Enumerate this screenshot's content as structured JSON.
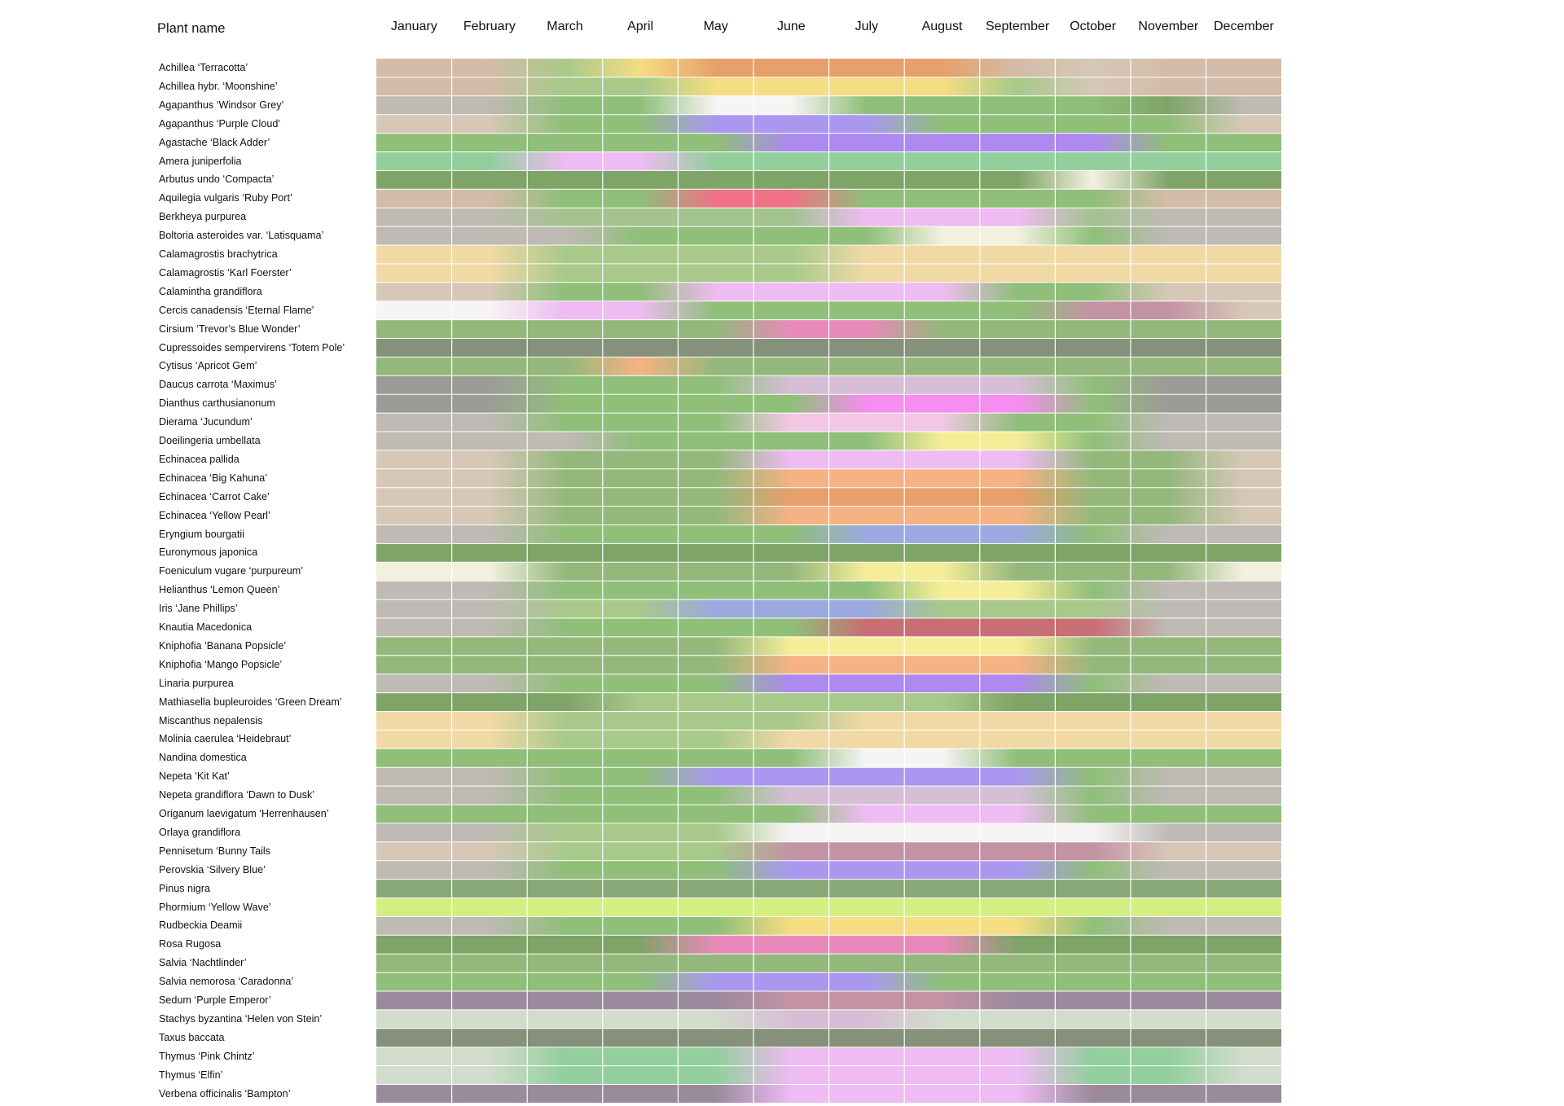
{
  "header": {
    "plant_name_label": "Plant name"
  },
  "chart_data": {
    "type": "heatmap",
    "months": [
      "January",
      "February",
      "March",
      "April",
      "May",
      "June",
      "July",
      "August",
      "September",
      "October",
      "November",
      "December"
    ],
    "palette": {
      "ochre": "#d3bca9",
      "beige": "#d6c7b7",
      "grey": "#bfbab4",
      "darkgrey": "#9d9b97",
      "green": "#8fbf79",
      "lightgreen": "#a8c98a",
      "midgreen": "#94b87c",
      "darkgreen": "#7fa468",
      "teal": "#92cf9c",
      "olive": "#88a878",
      "greygreen": "#85917a",
      "sage": "#a3c38f",
      "straw": "#f1d9a6",
      "orange": "#e7a06b",
      "apricot": "#f5b283",
      "yellow": "#f4dd82",
      "lemon": "#f6ed98",
      "cream": "#f3f0df",
      "white": "#f7f4f4",
      "lavender": "#aa98f0",
      "violet": "#ad89f0",
      "blue": "#9aa9df",
      "pink": "#eebbf2",
      "rose": "#e88ab9",
      "magenta": "#f68df0",
      "red": "#ef7286",
      "wine": "#c86e75",
      "mauve": "#c393a4",
      "lilac": "#d6bfd6",
      "purplegrey": "#9b8a9d",
      "lime": "#d5ee82",
      "silver": "#d2dccd",
      "pinkwhite": "#f2c6e4"
    },
    "plants": [
      {
        "name": "Achillea ‘Terracotta’",
        "colors": [
          "ochre",
          "ochre",
          "lightgreen",
          "yellow",
          "orange",
          "orange",
          "orange",
          "orange",
          "ochre",
          "beige",
          "ochre",
          "ochre"
        ]
      },
      {
        "name": "Achillea hybr. ‘Moonshine’",
        "colors": [
          "ochre",
          "ochre",
          "lightgreen",
          "lightgreen",
          "yellow",
          "yellow",
          "yellow",
          "yellow",
          "lightgreen",
          "beige",
          "ochre",
          "ochre"
        ]
      },
      {
        "name": "Agapanthus ‘Windsor Grey’",
        "colors": [
          "grey",
          "grey",
          "green",
          "green",
          "white",
          "white",
          "green",
          "green",
          "green",
          "green",
          "darkgreen",
          "grey"
        ]
      },
      {
        "name": "Agapanthus ‘Purple Cloud’",
        "colors": [
          "beige",
          "beige",
          "green",
          "green",
          "lavender",
          "lavender",
          "lavender",
          "green",
          "green",
          "green",
          "green",
          "beige"
        ]
      },
      {
        "name": "Agastache ‘Black Adder’",
        "colors": [
          "green",
          "green",
          "green",
          "green",
          "green",
          "violet",
          "violet",
          "violet",
          "violet",
          "violet",
          "green",
          "green"
        ]
      },
      {
        "name": "Amera juniperfolia",
        "colors": [
          "teal",
          "teal",
          "pink",
          "pink",
          "teal",
          "teal",
          "teal",
          "teal",
          "teal",
          "teal",
          "teal",
          "teal"
        ]
      },
      {
        "name": "Arbutus undo ‘Compacta’",
        "colors": [
          "darkgreen",
          "darkgreen",
          "darkgreen",
          "darkgreen",
          "darkgreen",
          "darkgreen",
          "darkgreen",
          "darkgreen",
          "darkgreen",
          "cream",
          "darkgreen",
          "darkgreen"
        ]
      },
      {
        "name": "Aquilegia vulgaris ‘Ruby Port’",
        "colors": [
          "ochre",
          "ochre",
          "green",
          "green",
          "red",
          "red",
          "green",
          "green",
          "green",
          "green",
          "ochre",
          "ochre"
        ]
      },
      {
        "name": "Berkheya purpurea",
        "colors": [
          "grey",
          "grey",
          "sage",
          "sage",
          "sage",
          "sage",
          "pink",
          "pink",
          "pink",
          "sage",
          "grey",
          "grey"
        ]
      },
      {
        "name": "Boltoria asteroides var. ‘Latisquama’",
        "colors": [
          "grey",
          "grey",
          "grey",
          "green",
          "green",
          "green",
          "green",
          "cream",
          "cream",
          "green",
          "grey",
          "grey"
        ]
      },
      {
        "name": "Calamagrostis brachytrica",
        "colors": [
          "straw",
          "straw",
          "lightgreen",
          "lightgreen",
          "lightgreen",
          "lightgreen",
          "straw",
          "straw",
          "straw",
          "straw",
          "straw",
          "straw"
        ]
      },
      {
        "name": "Calamagrostis ‘Karl Foerster’",
        "colors": [
          "straw",
          "straw",
          "lightgreen",
          "lightgreen",
          "lightgreen",
          "lightgreen",
          "straw",
          "straw",
          "straw",
          "straw",
          "straw",
          "straw"
        ]
      },
      {
        "name": "Calamintha grandiflora",
        "colors": [
          "beige",
          "beige",
          "green",
          "green",
          "pink",
          "pink",
          "pink",
          "pink",
          "green",
          "green",
          "beige",
          "beige"
        ]
      },
      {
        "name": "Cercis canadensis ‘Eternal Flame’",
        "colors": [
          "white",
          "white",
          "pink",
          "pink",
          "green",
          "green",
          "green",
          "green",
          "green",
          "mauve",
          "mauve",
          "beige"
        ]
      },
      {
        "name": "Cirsium ‘Trevor’s Blue Wonder’",
        "colors": [
          "midgreen",
          "midgreen",
          "midgreen",
          "midgreen",
          "midgreen",
          "rose",
          "rose",
          "midgreen",
          "midgreen",
          "midgreen",
          "midgreen",
          "midgreen"
        ]
      },
      {
        "name": "Cupressoides sempervirens ‘Totem Pole’",
        "colors": [
          "greygreen",
          "greygreen",
          "greygreen",
          "greygreen",
          "greygreen",
          "greygreen",
          "greygreen",
          "greygreen",
          "greygreen",
          "greygreen",
          "greygreen",
          "greygreen"
        ]
      },
      {
        "name": "Cytisus ‘Apricot Gem’",
        "colors": [
          "midgreen",
          "midgreen",
          "midgreen",
          "apricot",
          "midgreen",
          "midgreen",
          "midgreen",
          "midgreen",
          "midgreen",
          "midgreen",
          "midgreen",
          "midgreen"
        ]
      },
      {
        "name": "Daucus carrota ‘Maximus’",
        "colors": [
          "darkgrey",
          "darkgrey",
          "green",
          "green",
          "green",
          "lilac",
          "lilac",
          "lilac",
          "lilac",
          "green",
          "darkgrey",
          "darkgrey"
        ]
      },
      {
        "name": "Dianthus carthusianonum",
        "colors": [
          "darkgrey",
          "darkgrey",
          "green",
          "green",
          "green",
          "green",
          "magenta",
          "magenta",
          "magenta",
          "green",
          "darkgrey",
          "darkgrey"
        ]
      },
      {
        "name": "Dierama ‘Jucundum’",
        "colors": [
          "grey",
          "grey",
          "green",
          "green",
          "green",
          "pinkwhite",
          "pinkwhite",
          "pinkwhite",
          "green",
          "green",
          "grey",
          "grey"
        ]
      },
      {
        "name": "Doeilingeria umbellata",
        "colors": [
          "grey",
          "grey",
          "grey",
          "green",
          "green",
          "green",
          "green",
          "lemon",
          "lemon",
          "green",
          "grey",
          "grey"
        ]
      },
      {
        "name": "Echinacea pallida",
        "colors": [
          "beige",
          "beige",
          "midgreen",
          "midgreen",
          "midgreen",
          "pink",
          "pink",
          "pink",
          "pink",
          "midgreen",
          "midgreen",
          "beige"
        ]
      },
      {
        "name": "Echinacea ‘Big Kahuna’",
        "colors": [
          "beige",
          "beige",
          "midgreen",
          "midgreen",
          "midgreen",
          "apricot",
          "apricot",
          "apricot",
          "apricot",
          "midgreen",
          "midgreen",
          "beige"
        ]
      },
      {
        "name": "Echinacea ‘Carrot Cake’",
        "colors": [
          "beige",
          "beige",
          "midgreen",
          "midgreen",
          "midgreen",
          "orange",
          "orange",
          "orange",
          "orange",
          "midgreen",
          "midgreen",
          "beige"
        ]
      },
      {
        "name": "Echinacea ‘Yellow Pearl’",
        "colors": [
          "beige",
          "beige",
          "midgreen",
          "midgreen",
          "midgreen",
          "apricot",
          "apricot",
          "apricot",
          "apricot",
          "midgreen",
          "midgreen",
          "beige"
        ]
      },
      {
        "name": "Eryngium bourgatii",
        "colors": [
          "grey",
          "grey",
          "green",
          "green",
          "green",
          "green",
          "blue",
          "blue",
          "blue",
          "green",
          "grey",
          "grey"
        ]
      },
      {
        "name": "Euronymous japonica",
        "colors": [
          "darkgreen",
          "darkgreen",
          "darkgreen",
          "darkgreen",
          "darkgreen",
          "darkgreen",
          "darkgreen",
          "darkgreen",
          "darkgreen",
          "darkgreen",
          "darkgreen",
          "darkgreen"
        ]
      },
      {
        "name": "Foeniculum vugare ‘purpureum’",
        "colors": [
          "cream",
          "cream",
          "midgreen",
          "midgreen",
          "midgreen",
          "midgreen",
          "lemon",
          "lemon",
          "midgreen",
          "midgreen",
          "midgreen",
          "cream"
        ]
      },
      {
        "name": "Helianthus ‘Lemon Queen’",
        "colors": [
          "grey",
          "grey",
          "green",
          "green",
          "green",
          "green",
          "green",
          "lemon",
          "lemon",
          "green",
          "grey",
          "grey"
        ]
      },
      {
        "name": "Iris ‘Jane Phillips’",
        "colors": [
          "grey",
          "grey",
          "lightgreen",
          "lightgreen",
          "blue",
          "blue",
          "blue",
          "lightgreen",
          "lightgreen",
          "lightgreen",
          "grey",
          "grey"
        ]
      },
      {
        "name": "Knautia Macedonica",
        "colors": [
          "grey",
          "grey",
          "green",
          "green",
          "green",
          "green",
          "wine",
          "wine",
          "wine",
          "wine",
          "grey",
          "grey"
        ]
      },
      {
        "name": "Kniphofia ‘Banana Popsicle’",
        "colors": [
          "midgreen",
          "midgreen",
          "midgreen",
          "midgreen",
          "midgreen",
          "lemon",
          "lemon",
          "lemon",
          "lemon",
          "midgreen",
          "midgreen",
          "midgreen"
        ]
      },
      {
        "name": "Kniphofia ‘Mango Popsicle’",
        "colors": [
          "midgreen",
          "midgreen",
          "midgreen",
          "midgreen",
          "midgreen",
          "apricot",
          "apricot",
          "apricot",
          "apricot",
          "midgreen",
          "midgreen",
          "midgreen"
        ]
      },
      {
        "name": "Linaria purpurea",
        "colors": [
          "grey",
          "grey",
          "green",
          "green",
          "green",
          "violet",
          "violet",
          "violet",
          "violet",
          "green",
          "grey",
          "grey"
        ]
      },
      {
        "name": "Mathiasella bupleuroides ‘Green Dream’",
        "colors": [
          "darkgreen",
          "darkgreen",
          "darkgreen",
          "lightgreen",
          "lightgreen",
          "lightgreen",
          "lightgreen",
          "lightgreen",
          "darkgreen",
          "darkgreen",
          "darkgreen",
          "darkgreen"
        ]
      },
      {
        "name": "Miscanthus nepalensis",
        "colors": [
          "straw",
          "straw",
          "lightgreen",
          "lightgreen",
          "lightgreen",
          "lightgreen",
          "straw",
          "straw",
          "straw",
          "straw",
          "straw",
          "straw"
        ]
      },
      {
        "name": "Molinia caerulea ‘Heidebraut’",
        "colors": [
          "straw",
          "straw",
          "lightgreen",
          "lightgreen",
          "lightgreen",
          "straw",
          "straw",
          "straw",
          "straw",
          "straw",
          "straw",
          "straw"
        ]
      },
      {
        "name": "Nandina domestica",
        "colors": [
          "green",
          "green",
          "green",
          "green",
          "green",
          "green",
          "white",
          "white",
          "green",
          "green",
          "green",
          "green"
        ]
      },
      {
        "name": "Nepeta ‘Kit Kat’",
        "colors": [
          "grey",
          "grey",
          "green",
          "green",
          "lavender",
          "lavender",
          "lavender",
          "lavender",
          "lavender",
          "green",
          "grey",
          "grey"
        ]
      },
      {
        "name": "Nepeta grandiflora ‘Dawn to Dusk’",
        "colors": [
          "grey",
          "grey",
          "green",
          "green",
          "green",
          "lilac",
          "lilac",
          "lilac",
          "lilac",
          "green",
          "grey",
          "grey"
        ]
      },
      {
        "name": "Origanum laevigatum ‘Herrenhausen’",
        "colors": [
          "green",
          "green",
          "green",
          "green",
          "green",
          "green",
          "pink",
          "pink",
          "pink",
          "green",
          "green",
          "green"
        ]
      },
      {
        "name": "Orlaya grandiflora",
        "colors": [
          "grey",
          "grey",
          "lightgreen",
          "lightgreen",
          "lightgreen",
          "white",
          "white",
          "white",
          "white",
          "white",
          "grey",
          "grey"
        ]
      },
      {
        "name": "Pennisetum ‘Bunny Tails",
        "colors": [
          "beige",
          "beige",
          "lightgreen",
          "lightgreen",
          "lightgreen",
          "mauve",
          "mauve",
          "mauve",
          "mauve",
          "mauve",
          "beige",
          "beige"
        ]
      },
      {
        "name": "Perovskia ‘Silvery Blue’",
        "colors": [
          "grey",
          "grey",
          "green",
          "green",
          "green",
          "lavender",
          "lavender",
          "lavender",
          "lavender",
          "green",
          "grey",
          "grey"
        ]
      },
      {
        "name": "Pinus nigra",
        "colors": [
          "olive",
          "olive",
          "olive",
          "olive",
          "olive",
          "olive",
          "olive",
          "olive",
          "olive",
          "olive",
          "olive",
          "olive"
        ]
      },
      {
        "name": "Phormium ‘Yellow Wave’",
        "colors": [
          "lime",
          "lime",
          "lime",
          "lime",
          "lime",
          "lime",
          "lime",
          "lime",
          "lime",
          "lime",
          "lime",
          "lime"
        ]
      },
      {
        "name": "Rudbeckia Deamii",
        "colors": [
          "grey",
          "grey",
          "green",
          "green",
          "green",
          "yellow",
          "yellow",
          "yellow",
          "yellow",
          "green",
          "grey",
          "grey"
        ]
      },
      {
        "name": "Rosa Rugosa",
        "colors": [
          "darkgreen",
          "darkgreen",
          "darkgreen",
          "darkgreen",
          "rose",
          "rose",
          "rose",
          "rose",
          "darkgreen",
          "darkgreen",
          "darkgreen",
          "darkgreen"
        ]
      },
      {
        "name": "Salvia ‘Nachtlinder’",
        "colors": [
          "midgreen",
          "midgreen",
          "midgreen",
          "midgreen",
          "midgreen",
          "midgreen",
          "midgreen",
          "midgreen",
          "midgreen",
          "midgreen",
          "midgreen",
          "midgreen"
        ]
      },
      {
        "name": "Salvia nemorosa ‘Caradonna’",
        "colors": [
          "green",
          "green",
          "green",
          "green",
          "lavender",
          "lavender",
          "lavender",
          "green",
          "green",
          "green",
          "green",
          "green"
        ]
      },
      {
        "name": "Sedum ‘Purple Emperor’",
        "colors": [
          "purplegrey",
          "purplegrey",
          "purplegrey",
          "purplegrey",
          "purplegrey",
          "mauve",
          "mauve",
          "mauve",
          "purplegrey",
          "purplegrey",
          "purplegrey",
          "purplegrey"
        ]
      },
      {
        "name": "Stachys byzantina ‘Helen von Stein’",
        "colors": [
          "silver",
          "silver",
          "silver",
          "silver",
          "silver",
          "lilac",
          "lilac",
          "silver",
          "silver",
          "silver",
          "silver",
          "silver"
        ]
      },
      {
        "name": "Taxus baccata",
        "colors": [
          "greygreen",
          "greygreen",
          "greygreen",
          "greygreen",
          "greygreen",
          "greygreen",
          "greygreen",
          "greygreen",
          "greygreen",
          "greygreen",
          "greygreen",
          "greygreen"
        ]
      },
      {
        "name": "Thymus ‘Pink Chintz’",
        "colors": [
          "silver",
          "silver",
          "teal",
          "teal",
          "teal",
          "pink",
          "pink",
          "pink",
          "pink",
          "teal",
          "teal",
          "silver"
        ]
      },
      {
        "name": "Thymus ‘Elfin’",
        "colors": [
          "silver",
          "silver",
          "teal",
          "teal",
          "teal",
          "pink",
          "pink",
          "pink",
          "pink",
          "teal",
          "teal",
          "silver"
        ]
      },
      {
        "name": "Verbena officinalis ‘Bampton’",
        "colors": [
          "purplegrey",
          "purplegrey",
          "purplegrey",
          "purplegrey",
          "purplegrey",
          "pink",
          "pink",
          "pink",
          "pink",
          "purplegrey",
          "purplegrey",
          "purplegrey"
        ]
      }
    ]
  }
}
